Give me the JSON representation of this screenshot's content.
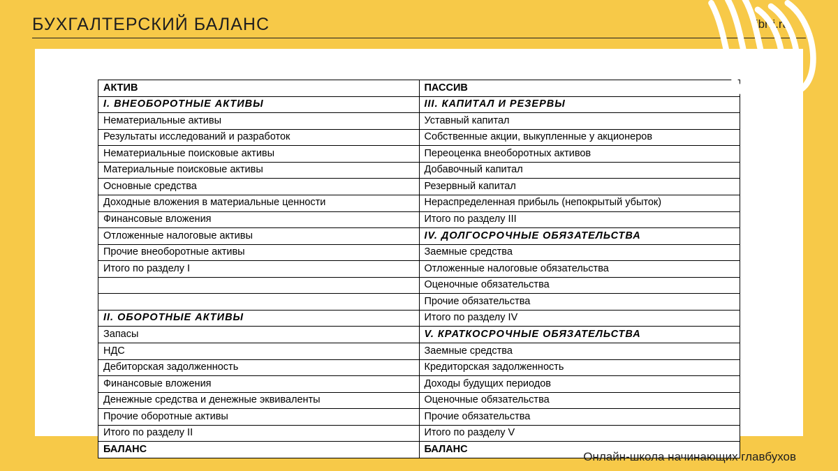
{
  "page": {
    "title": "БУХГАЛТЕРСКИЙ БАЛАНС",
    "brand": "librri.ru",
    "footer": "Онлайн-школа начинающих главбухов"
  },
  "colors": {
    "accent": "#f7c948",
    "background": "#ffffff",
    "text": "#1f1f1f",
    "border": "#000000",
    "scribble": "#ffffff"
  },
  "typography": {
    "title_fontsize": 25,
    "brand_fontsize": 17,
    "table_fontsize": 14.5,
    "footer_fontsize": 17
  },
  "table": {
    "type": "table",
    "columns": [
      "left",
      "right"
    ],
    "rows": [
      {
        "left": {
          "text": "АКТИВ",
          "style": "hdr"
        },
        "right": {
          "text": "ПАССИВ",
          "style": "hdr"
        }
      },
      {
        "left": {
          "text": "I.  ВНЕОБОРОТНЫЕ  АКТИВЫ",
          "style": "sec"
        },
        "right": {
          "text": "III.  КАПИТАЛ  И  РЕЗЕРВЫ",
          "style": "sec"
        }
      },
      {
        "left": {
          "text": "Нематериальные активы",
          "style": "row"
        },
        "right": {
          "text": "Уставный капитал",
          "style": "row"
        }
      },
      {
        "left": {
          "text": "Результаты исследований и разработок",
          "style": "row"
        },
        "right": {
          "text": "Собственные акции, выкупленные у акционеров",
          "style": "row"
        }
      },
      {
        "left": {
          "text": "Нематериальные поисковые активы",
          "style": "row"
        },
        "right": {
          "text": "Переоценка внеоборотных активов",
          "style": "row"
        }
      },
      {
        "left": {
          "text": "Материальные поисковые активы",
          "style": "row"
        },
        "right": {
          "text": "Добавочный капитал",
          "style": "row"
        }
      },
      {
        "left": {
          "text": "Основные средства",
          "style": "row"
        },
        "right": {
          "text": "Резервный капитал",
          "style": "row"
        }
      },
      {
        "left": {
          "text": "Доходные вложения в материальные ценности",
          "style": "row"
        },
        "right": {
          "text": "Нераспределенная прибыль (непокрытый убыток)",
          "style": "row"
        }
      },
      {
        "left": {
          "text": "Финансовые вложения",
          "style": "row"
        },
        "right": {
          "text": "Итого по разделу III",
          "style": "tot"
        }
      },
      {
        "left": {
          "text": "Отложенные налоговые активы",
          "style": "row"
        },
        "right": {
          "text": "IV.  ДОЛГОСРОЧНЫЕ  ОБЯЗАТЕЛЬСТВА",
          "style": "sec"
        }
      },
      {
        "left": {
          "text": "Прочие внеоборотные активы",
          "style": "row"
        },
        "right": {
          "text": "Заемные средства",
          "style": "row"
        }
      },
      {
        "left": {
          "text": "Итого по разделу I",
          "style": "tot"
        },
        "right": {
          "text": "Отложенные налоговые обязательства",
          "style": "row"
        }
      },
      {
        "left": {
          "text": "",
          "style": "row"
        },
        "right": {
          "text": "Оценочные обязательства",
          "style": "row"
        }
      },
      {
        "left": {
          "text": "",
          "style": "row"
        },
        "right": {
          "text": "Прочие обязательства",
          "style": "row"
        }
      },
      {
        "left": {
          "text": "II.  ОБОРОТНЫЕ  АКТИВЫ",
          "style": "sec"
        },
        "right": {
          "text": "Итого по разделу IV",
          "style": "tot"
        }
      },
      {
        "left": {
          "text": "Запасы",
          "style": "row"
        },
        "right": {
          "text": "V.  КРАТКОСРОЧНЫЕ  ОБЯЗАТЕЛЬСТВА",
          "style": "sec"
        }
      },
      {
        "left": {
          "text": "НДС",
          "style": "row"
        },
        "right": {
          "text": "Заемные средства",
          "style": "row"
        }
      },
      {
        "left": {
          "text": "Дебиторская задолженность",
          "style": "row"
        },
        "right": {
          "text": "Кредиторская задолженность",
          "style": "row"
        }
      },
      {
        "left": {
          "text": "Финансовые вложения",
          "style": "row"
        },
        "right": {
          "text": "Доходы будущих периодов",
          "style": "row"
        }
      },
      {
        "left": {
          "text": "Денежные средства и денежные эквиваленты",
          "style": "row"
        },
        "right": {
          "text": "Оценочные обязательства",
          "style": "row"
        }
      },
      {
        "left": {
          "text": "Прочие оборотные активы",
          "style": "row"
        },
        "right": {
          "text": "Прочие обязательства",
          "style": "row"
        }
      },
      {
        "left": {
          "text": "Итого по разделу II",
          "style": "tot"
        },
        "right": {
          "text": "Итого по разделу V",
          "style": "tot"
        }
      },
      {
        "left": {
          "text": "БАЛАНС",
          "style": "bal"
        },
        "right": {
          "text": "БАЛАНС",
          "style": "bal"
        }
      }
    ]
  }
}
